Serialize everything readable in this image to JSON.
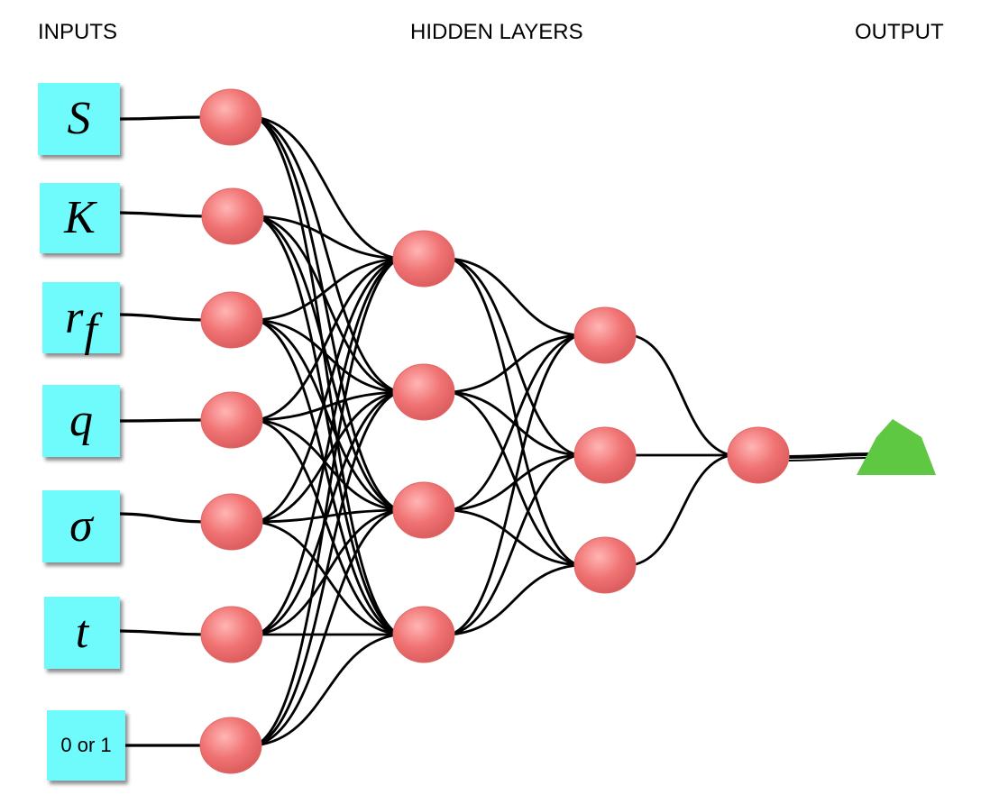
{
  "headers": {
    "inputs": "INPUTS",
    "hidden": "HIDDEN LAYERS",
    "output": "OUTPUT"
  },
  "inputs": [
    {
      "main": "S",
      "sub": ""
    },
    {
      "main": "K",
      "sub": ""
    },
    {
      "main": "r",
      "sub": "f"
    },
    {
      "main": "q",
      "sub": ""
    },
    {
      "main": "σ",
      "sub": ""
    },
    {
      "main": "t",
      "sub": ""
    },
    {
      "main": "0 or 1",
      "sub": ""
    }
  ],
  "network": {
    "layer_sizes": [
      7,
      4,
      3,
      1
    ],
    "output_nodes": 1
  },
  "colors": {
    "input_box": "#6ffbfb",
    "node_fill": "#f07272",
    "node_highlight": "#ffb5b5",
    "edge": "#000000",
    "output_triangle": "#5ec843"
  }
}
